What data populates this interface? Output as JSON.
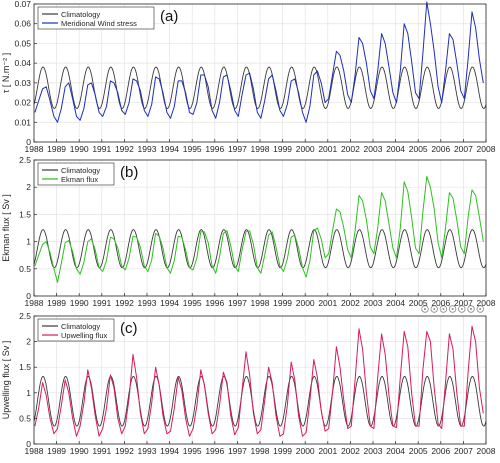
{
  "figure": {
    "toolbar_icons": [
      "export-icon",
      "brush-icon",
      "datatip-icon",
      "pan-icon",
      "zoom-in-icon",
      "zoom-out-icon",
      "home-icon"
    ]
  },
  "chart_data": [
    {
      "type": "line",
      "panel_label": "(a)",
      "ylabel": "τ [ N.m⁻² ]",
      "xlim": [
        1988,
        2008
      ],
      "ylim": [
        0,
        0.07
      ],
      "yticks": [
        0,
        0.01,
        0.02,
        0.03,
        0.04,
        0.05,
        0.06,
        0.07
      ],
      "ytick_labels": [
        "0",
        "0.01",
        "0.02",
        "0.03",
        "0.04",
        "0.05",
        "0.06",
        "0.07"
      ],
      "xticks": [
        1988,
        1989,
        1990,
        1991,
        1992,
        1993,
        1994,
        1995,
        1996,
        1997,
        1998,
        1999,
        2000,
        2001,
        2002,
        2003,
        2004,
        2005,
        2006,
        2007,
        2008
      ],
      "xtick_labels": [
        "1988",
        "1989",
        "1990",
        "1991",
        "1992",
        "1993",
        "1994",
        "1995",
        "1996",
        "1997",
        "1998",
        "1999",
        "2000",
        "2001",
        "2002",
        "2003",
        "2004",
        "2005",
        "2006",
        "2007",
        "2008"
      ],
      "grid": true,
      "legend_position": "top-left",
      "series": [
        {
          "name": "Climatology",
          "color": "#3a3a3a",
          "kind": "climatology",
          "min": 0.017,
          "max": 0.038,
          "peak_phase": 0.4
        },
        {
          "name": "Meridional Wind stress",
          "color": "#1f2fb8",
          "x": [
            1988.04,
            1988.21,
            1988.38,
            1988.54,
            1988.71,
            1988.88,
            1989.04,
            1989.21,
            1989.38,
            1989.54,
            1989.71,
            1989.88,
            1990.04,
            1990.21,
            1990.38,
            1990.54,
            1990.71,
            1990.88,
            1991.04,
            1991.21,
            1991.38,
            1991.54,
            1991.71,
            1991.88,
            1992.04,
            1992.21,
            1992.38,
            1992.54,
            1992.71,
            1992.88,
            1993.04,
            1993.21,
            1993.38,
            1993.54,
            1993.71,
            1993.88,
            1994.04,
            1994.21,
            1994.38,
            1994.54,
            1994.71,
            1994.88,
            1995.04,
            1995.21,
            1995.38,
            1995.54,
            1995.71,
            1995.88,
            1996.04,
            1996.21,
            1996.38,
            1996.54,
            1996.71,
            1996.88,
            1997.04,
            1997.21,
            1997.38,
            1997.54,
            1997.71,
            1997.88,
            1998.04,
            1998.21,
            1998.38,
            1998.54,
            1998.71,
            1998.88,
            1999.04,
            1999.21,
            1999.38,
            1999.54,
            1999.71,
            1999.88,
            2000.04,
            2000.21,
            2000.38,
            2000.54,
            2000.71,
            2000.88,
            2001.04,
            2001.21,
            2001.38,
            2001.54,
            2001.71,
            2001.88,
            2002.04,
            2002.21,
            2002.38,
            2002.54,
            2002.71,
            2002.88,
            2003.04,
            2003.21,
            2003.38,
            2003.54,
            2003.71,
            2003.88,
            2004.04,
            2004.21,
            2004.38,
            2004.54,
            2004.71,
            2004.88,
            2005.04,
            2005.21,
            2005.38,
            2005.54,
            2005.71,
            2005.88,
            2006.04,
            2006.21,
            2006.38,
            2006.54,
            2006.71,
            2006.88,
            2007.04,
            2007.21,
            2007.38,
            2007.54,
            2007.71,
            2007.88
          ],
          "y": [
            0.015,
            0.021,
            0.027,
            0.028,
            0.021,
            0.013,
            0.01,
            0.017,
            0.028,
            0.03,
            0.022,
            0.013,
            0.011,
            0.017,
            0.029,
            0.03,
            0.024,
            0.015,
            0.013,
            0.018,
            0.031,
            0.03,
            0.025,
            0.016,
            0.014,
            0.02,
            0.032,
            0.031,
            0.026,
            0.016,
            0.013,
            0.019,
            0.033,
            0.032,
            0.025,
            0.015,
            0.012,
            0.018,
            0.031,
            0.031,
            0.025,
            0.015,
            0.014,
            0.02,
            0.034,
            0.034,
            0.028,
            0.016,
            0.012,
            0.02,
            0.033,
            0.034,
            0.026,
            0.016,
            0.013,
            0.024,
            0.034,
            0.035,
            0.027,
            0.015,
            0.012,
            0.021,
            0.032,
            0.034,
            0.026,
            0.016,
            0.013,
            0.019,
            0.031,
            0.032,
            0.025,
            0.015,
            0.01,
            0.018,
            0.034,
            0.036,
            0.03,
            0.02,
            0.022,
            0.034,
            0.046,
            0.044,
            0.036,
            0.024,
            0.02,
            0.034,
            0.053,
            0.05,
            0.04,
            0.026,
            0.022,
            0.036,
            0.055,
            0.05,
            0.038,
            0.025,
            0.02,
            0.036,
            0.06,
            0.055,
            0.041,
            0.025,
            0.022,
            0.045,
            0.071,
            0.06,
            0.046,
            0.028,
            0.02,
            0.036,
            0.055,
            0.052,
            0.04,
            0.026,
            0.022,
            0.042,
            0.066,
            0.058,
            0.042,
            0.03
          ]
        }
      ]
    },
    {
      "type": "line",
      "panel_label": "(b)",
      "ylabel": "Ekman flux [ Sv ]",
      "xlim": [
        1988,
        2008
      ],
      "ylim": [
        0,
        2.5
      ],
      "yticks": [
        0,
        0.5,
        1,
        1.5,
        2,
        2.5
      ],
      "ytick_labels": [
        "0",
        "0.5",
        "1",
        "1.5",
        "2",
        "2.5"
      ],
      "xticks": [
        1988,
        1989,
        1990,
        1991,
        1992,
        1993,
        1994,
        1995,
        1996,
        1997,
        1998,
        1999,
        2000,
        2001,
        2002,
        2003,
        2004,
        2005,
        2006,
        2007,
        2008
      ],
      "xtick_labels": [
        "1988",
        "1989",
        "1990",
        "1991",
        "1992",
        "1993",
        "1994",
        "1995",
        "1996",
        "1997",
        "1998",
        "1999",
        "2000",
        "2001",
        "2002",
        "2003",
        "2004",
        "2005",
        "2006",
        "2007",
        "2008"
      ],
      "grid": true,
      "legend_position": "top-left",
      "series": [
        {
          "name": "Climatology",
          "color": "#3a3a3a",
          "kind": "climatology",
          "min": 0.52,
          "max": 1.22,
          "peak_phase": 0.4
        },
        {
          "name": "Ekman flux",
          "color": "#2fbf1f",
          "x": [
            1988.04,
            1988.21,
            1988.38,
            1988.54,
            1988.71,
            1988.88,
            1989.04,
            1989.21,
            1989.38,
            1989.54,
            1989.71,
            1989.88,
            1990.04,
            1990.21,
            1990.38,
            1990.54,
            1990.71,
            1990.88,
            1991.04,
            1991.21,
            1991.38,
            1991.54,
            1991.71,
            1991.88,
            1992.04,
            1992.21,
            1992.38,
            1992.54,
            1992.71,
            1992.88,
            1993.04,
            1993.21,
            1993.38,
            1993.54,
            1993.71,
            1993.88,
            1994.04,
            1994.21,
            1994.38,
            1994.54,
            1994.71,
            1994.88,
            1995.04,
            1995.21,
            1995.38,
            1995.54,
            1995.71,
            1995.88,
            1996.04,
            1996.21,
            1996.38,
            1996.54,
            1996.71,
            1996.88,
            1997.04,
            1997.21,
            1997.38,
            1997.54,
            1997.71,
            1997.88,
            1998.04,
            1998.21,
            1998.38,
            1998.54,
            1998.71,
            1998.88,
            1999.04,
            1999.21,
            1999.38,
            1999.54,
            1999.71,
            1999.88,
            2000.04,
            2000.21,
            2000.38,
            2000.54,
            2000.71,
            2000.88,
            2001.04,
            2001.21,
            2001.38,
            2001.54,
            2001.71,
            2001.88,
            2002.04,
            2002.21,
            2002.38,
            2002.54,
            2002.71,
            2002.88,
            2003.04,
            2003.21,
            2003.38,
            2003.54,
            2003.71,
            2003.88,
            2004.04,
            2004.21,
            2004.38,
            2004.54,
            2004.71,
            2004.88,
            2005.04,
            2005.21,
            2005.38,
            2005.54,
            2005.71,
            2005.88,
            2006.04,
            2006.21,
            2006.38,
            2006.54,
            2006.71,
            2006.88,
            2007.04,
            2007.21,
            2007.38,
            2007.54,
            2007.71,
            2007.88
          ],
          "y": [
            0.55,
            0.75,
            0.95,
            1.0,
            0.8,
            0.5,
            0.25,
            0.6,
            0.98,
            1.02,
            0.82,
            0.5,
            0.4,
            0.62,
            1.0,
            1.05,
            0.85,
            0.52,
            0.45,
            0.65,
            1.08,
            1.05,
            0.88,
            0.55,
            0.48,
            0.7,
            1.1,
            1.08,
            0.9,
            0.55,
            0.45,
            0.66,
            1.15,
            1.1,
            0.88,
            0.52,
            0.42,
            0.65,
            1.1,
            1.08,
            0.85,
            0.52,
            0.48,
            0.7,
            1.18,
            1.18,
            0.98,
            0.55,
            0.42,
            0.72,
            1.15,
            1.2,
            0.92,
            0.55,
            0.45,
            0.85,
            1.18,
            1.2,
            0.95,
            0.52,
            0.42,
            0.75,
            1.12,
            1.18,
            0.9,
            0.55,
            0.45,
            0.68,
            1.08,
            1.12,
            0.88,
            0.52,
            0.35,
            0.65,
            1.2,
            1.25,
            1.05,
            0.7,
            0.78,
            1.2,
            1.6,
            1.55,
            1.25,
            0.85,
            0.7,
            1.2,
            1.85,
            1.75,
            1.4,
            0.9,
            0.78,
            1.25,
            1.9,
            1.75,
            1.32,
            0.88,
            0.7,
            1.25,
            2.1,
            1.92,
            1.45,
            0.88,
            0.78,
            1.55,
            2.2,
            2.0,
            1.6,
            0.98,
            0.7,
            1.25,
            1.9,
            1.8,
            1.4,
            0.9,
            0.78,
            1.45,
            1.95,
            1.85,
            1.45,
            1.0
          ]
        }
      ]
    },
    {
      "type": "line",
      "panel_label": "(c)",
      "ylabel": "Upwelling flux [ Sv ]",
      "xlim": [
        1988,
        2008
      ],
      "ylim": [
        0,
        2.5
      ],
      "yticks": [
        0,
        0.5,
        1,
        1.5,
        2,
        2.5
      ],
      "ytick_labels": [
        "0",
        "0.5",
        "1",
        "1.5",
        "2",
        "2.5"
      ],
      "xticks": [
        1988,
        1989,
        1990,
        1991,
        1992,
        1993,
        1994,
        1995,
        1996,
        1997,
        1998,
        1999,
        2000,
        2001,
        2002,
        2003,
        2004,
        2005,
        2006,
        2007,
        2008
      ],
      "xtick_labels": [
        "1988",
        "1989",
        "1990",
        "1991",
        "1992",
        "1993",
        "1994",
        "1995",
        "1996",
        "1997",
        "1998",
        "1999",
        "2000",
        "2001",
        "2002",
        "2003",
        "2004",
        "2005",
        "2006",
        "2007",
        "2008"
      ],
      "grid": true,
      "legend_position": "top-left",
      "series": [
        {
          "name": "Climatology",
          "color": "#3a3a3a",
          "kind": "climatology",
          "min": 0.35,
          "max": 1.32,
          "peak_phase": 0.4
        },
        {
          "name": "Upwelling flux",
          "color": "#d81b5a",
          "x": [
            1988.04,
            1988.21,
            1988.38,
            1988.54,
            1988.71,
            1988.88,
            1989.04,
            1989.21,
            1989.38,
            1989.54,
            1989.71,
            1989.88,
            1990.04,
            1990.21,
            1990.38,
            1990.54,
            1990.71,
            1990.88,
            1991.04,
            1991.21,
            1991.38,
            1991.54,
            1991.71,
            1991.88,
            1992.04,
            1992.21,
            1992.38,
            1992.54,
            1992.71,
            1992.88,
            1993.04,
            1993.21,
            1993.38,
            1993.54,
            1993.71,
            1993.88,
            1994.04,
            1994.21,
            1994.38,
            1994.54,
            1994.71,
            1994.88,
            1995.04,
            1995.21,
            1995.38,
            1995.54,
            1995.71,
            1995.88,
            1996.04,
            1996.21,
            1996.38,
            1996.54,
            1996.71,
            1996.88,
            1997.04,
            1997.21,
            1997.38,
            1997.54,
            1997.71,
            1997.88,
            1998.04,
            1998.21,
            1998.38,
            1998.54,
            1998.71,
            1998.88,
            1999.04,
            1999.21,
            1999.38,
            1999.54,
            1999.71,
            1999.88,
            2000.04,
            2000.21,
            2000.38,
            2000.54,
            2000.71,
            2000.88,
            2001.04,
            2001.21,
            2001.38,
            2001.54,
            2001.71,
            2001.88,
            2002.04,
            2002.21,
            2002.38,
            2002.54,
            2002.71,
            2002.88,
            2003.04,
            2003.21,
            2003.38,
            2003.54,
            2003.71,
            2003.88,
            2004.04,
            2004.21,
            2004.38,
            2004.54,
            2004.71,
            2004.88,
            2005.04,
            2005.21,
            2005.38,
            2005.54,
            2005.71,
            2005.88,
            2006.04,
            2006.21,
            2006.38,
            2006.54,
            2006.71,
            2006.88,
            2007.04,
            2007.21,
            2007.38,
            2007.54,
            2007.71,
            2007.88
          ],
          "y": [
            0.35,
            0.7,
            1.2,
            0.95,
            0.5,
            0.2,
            0.3,
            0.75,
            1.25,
            1.0,
            0.5,
            0.15,
            0.35,
            0.8,
            1.45,
            1.1,
            0.55,
            0.15,
            0.3,
            0.7,
            1.35,
            1.1,
            0.5,
            0.2,
            0.35,
            0.9,
            1.75,
            1.3,
            0.6,
            0.2,
            0.3,
            0.8,
            1.5,
            1.15,
            0.55,
            0.2,
            0.25,
            0.7,
            1.3,
            1.05,
            0.5,
            0.15,
            0.3,
            0.75,
            1.45,
            1.15,
            0.6,
            0.2,
            0.28,
            0.75,
            1.4,
            1.2,
            0.55,
            0.18,
            0.32,
            1.05,
            1.8,
            1.35,
            0.6,
            0.2,
            0.28,
            0.85,
            1.5,
            1.2,
            0.55,
            0.15,
            0.2,
            0.75,
            1.6,
            1.25,
            0.55,
            0.15,
            0.22,
            0.85,
            1.65,
            1.3,
            0.65,
            0.25,
            0.3,
            1.0,
            1.9,
            1.5,
            0.85,
            0.3,
            0.35,
            1.25,
            2.25,
            1.85,
            1.0,
            0.35,
            0.3,
            1.3,
            2.15,
            1.75,
            0.95,
            0.35,
            0.32,
            1.3,
            2.2,
            1.9,
            1.0,
            0.35,
            0.35,
            1.45,
            2.2,
            2.0,
            1.1,
            0.4,
            0.3,
            1.2,
            2.15,
            1.85,
            1.0,
            0.35,
            0.35,
            1.4,
            2.3,
            2.0,
            1.1,
            0.6
          ]
        }
      ]
    }
  ]
}
